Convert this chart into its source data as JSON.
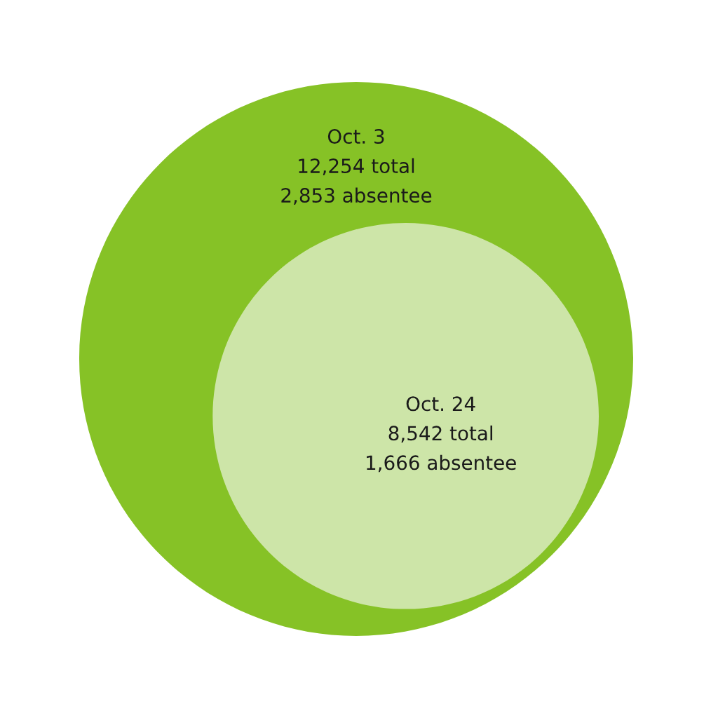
{
  "chart_data": {
    "type": "other",
    "categories": [
      "Oct. 3",
      "Oct. 24"
    ],
    "colors": [
      "#86c226",
      "#cde5a8"
    ],
    "series": [
      {
        "values": [
          12254,
          8542
        ],
        "value_labels": [
          "12,254 total",
          "8,542 total"
        ]
      },
      {
        "values": [
          2853,
          1666
        ],
        "value_labels": [
          "2,853 absentee",
          "1,666 absentee"
        ]
      }
    ]
  }
}
